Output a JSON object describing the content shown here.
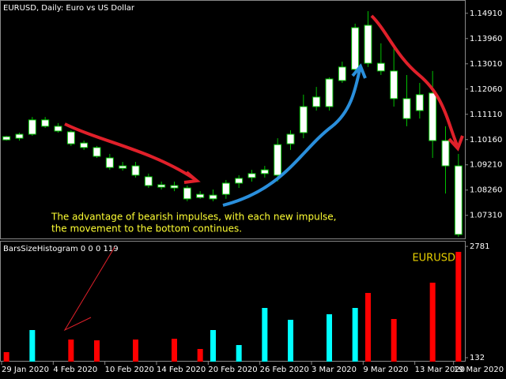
{
  "chart_data": [
    {
      "type": "candlestick",
      "title": "EURUSD, Daily:  Euro vs US Dollar",
      "annotation": [
        "The advantage of bearish impulses, with each new impulse,",
        "the movement to the bottom continues."
      ],
      "categories": [
        "29 Jan 2020",
        null,
        null,
        null,
        "4 Feb 2020",
        null,
        null,
        null,
        "10 Feb 2020",
        null,
        null,
        null,
        "14 Feb 2020",
        null,
        null,
        null,
        "20 Feb 2020",
        null,
        null,
        null,
        "26 Feb 2020",
        null,
        null,
        null,
        "3 Mar 2020",
        null,
        null,
        null,
        "9 Mar 2020",
        null,
        null,
        null,
        "13 Mar 2020",
        null,
        null,
        "19 Mar 2020"
      ],
      "open": [
        1.1015,
        1.1021,
        1.1036,
        1.109,
        1.1066,
        1.1045,
        1.1003,
        1.0986,
        1.0947,
        1.0917,
        1.0917,
        1.0876,
        1.0846,
        1.0843,
        1.0834,
        1.081,
        1.0793,
        1.081,
        1.0852,
        1.0873,
        1.0888,
        1.0882,
        1.1,
        1.1042,
        1.114,
        1.114,
        1.1238,
        1.128,
        1.1446,
        1.1303,
        1.1274,
        1.117,
        1.1185,
        1.1191,
        1.1012,
        1.0917
      ],
      "high": [
        1.103,
        1.1042,
        1.1101,
        1.1101,
        1.1078,
        1.1051,
        1.1012,
        1.0992,
        1.0962,
        1.0932,
        1.0932,
        1.0888,
        1.0858,
        1.0858,
        1.0843,
        1.0822,
        1.0828,
        1.0864,
        1.0882,
        1.0902,
        1.0917,
        1.1021,
        1.1051,
        1.1185,
        1.1214,
        1.125,
        1.1309,
        1.1452,
        1.1499,
        1.1378,
        1.1363,
        1.1259,
        1.1229,
        1.1274,
        1.1066,
        1.0962
      ],
      "low": [
        1.1012,
        1.1012,
        1.103,
        1.106,
        1.1042,
        1.0992,
        1.0977,
        1.0947,
        1.0902,
        1.0899,
        1.0873,
        1.0834,
        1.0828,
        1.0822,
        1.0784,
        1.0793,
        1.0784,
        1.0793,
        1.0834,
        1.0858,
        1.0873,
        1.0858,
        1.0977,
        1.1021,
        1.1125,
        1.1125,
        1.1229,
        1.1274,
        1.1289,
        1.1259,
        1.114,
        1.1066,
        1.1095,
        1.0947,
        1.0813,
        1.065
      ],
      "close": [
        1.1027,
        1.1036,
        1.109,
        1.1066,
        1.1048,
        1.1,
        1.0986,
        1.0953,
        1.0911,
        1.0908,
        1.0882,
        1.0843,
        1.0837,
        1.0834,
        1.0793,
        1.0798,
        1.0807,
        1.0852,
        1.087,
        1.0888,
        1.0902,
        1.0997,
        1.1036,
        1.114,
        1.1176,
        1.1244,
        1.1289,
        1.1437,
        1.1303,
        1.1274,
        1.117,
        1.1095,
        1.1125,
        1.1012,
        1.0917,
        1.0659
      ],
      "body_color": "#ffffff",
      "wick_color": "#00c000",
      "ylim": [
        1.0644,
        1.1541
      ],
      "yticks": [
        {
          "value": 1.1491,
          "label": "1.14910"
        },
        {
          "value": 1.1396,
          "label": "1.13960"
        },
        {
          "value": 1.1301,
          "label": "1.13010"
        },
        {
          "value": 1.1206,
          "label": "1.12060"
        },
        {
          "value": 1.1111,
          "label": "1.11110"
        },
        {
          "value": 1.1016,
          "label": "1.10160"
        },
        {
          "value": 1.0921,
          "label": "1.09210"
        },
        {
          "value": 1.0826,
          "label": "1.08260"
        },
        {
          "value": 1.0731,
          "label": "1.07310"
        }
      ]
    },
    {
      "type": "bar",
      "title": "BarsSizeHistogram 0 0 0 119",
      "symbol": "EURUSD",
      "values": [
        264,
        null,
        790,
        null,
        null,
        564,
        null,
        545,
        null,
        null,
        564,
        null,
        null,
        583,
        null,
        339,
        790,
        null,
        433,
        null,
        1316,
        null,
        1034,
        null,
        null,
        1166,
        null,
        1316,
        1673,
        null,
        1053,
        null,
        null,
        1917,
        null,
        2651
      ],
      "colors": [
        "#ff0000",
        null,
        "#00ffff",
        null,
        null,
        "#ff0000",
        null,
        "#ff0000",
        null,
        null,
        "#ff0000",
        null,
        null,
        "#ff0000",
        null,
        "#ff0000",
        "#00ffff",
        null,
        "#00ffff",
        null,
        "#00ffff",
        null,
        "#00ffff",
        null,
        null,
        "#00ffff",
        null,
        "#00ffff",
        "#ff0000",
        null,
        "#ff0000",
        null,
        null,
        "#ff0000",
        null,
        "#ff0000"
      ],
      "ylim": [
        38,
        2895
      ],
      "yticks": [
        132,
        2781
      ]
    }
  ]
}
